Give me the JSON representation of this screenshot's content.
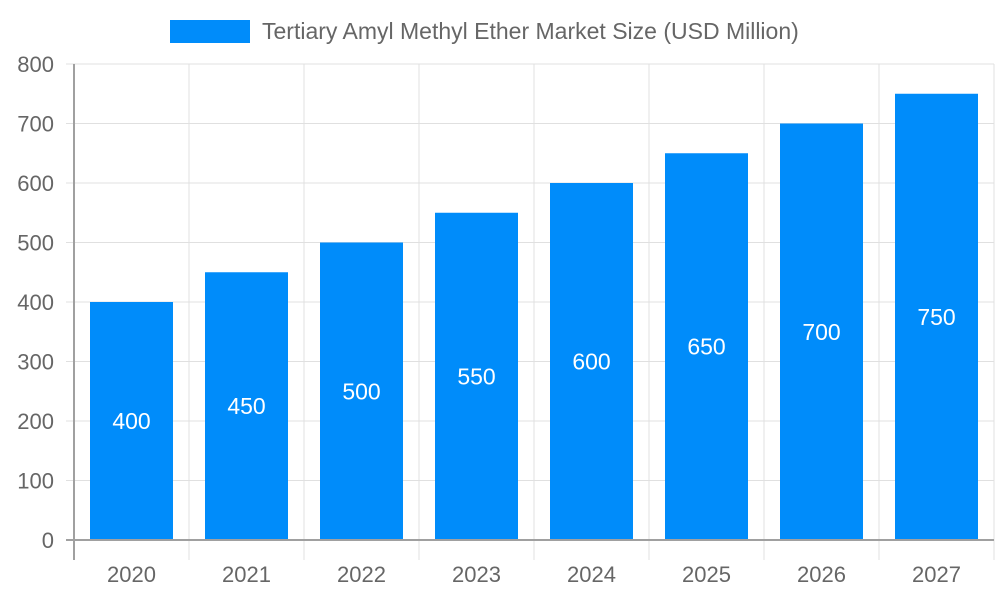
{
  "chart_data": {
    "type": "bar",
    "title": "",
    "xlabel": "",
    "ylabel": "",
    "categories": [
      "2020",
      "2021",
      "2022",
      "2023",
      "2024",
      "2025",
      "2026",
      "2027"
    ],
    "series": [
      {
        "name": "Tertiary Amyl Methyl Ether Market Size (USD Million)",
        "values": [
          400,
          450,
          500,
          550,
          600,
          650,
          700,
          750
        ],
        "color": "#008cfa"
      }
    ],
    "ylim": [
      0,
      800
    ],
    "yticks": [
      0,
      100,
      200,
      300,
      400,
      500,
      600,
      700,
      800
    ],
    "grid": true,
    "legend": "top",
    "data_labels": true
  }
}
